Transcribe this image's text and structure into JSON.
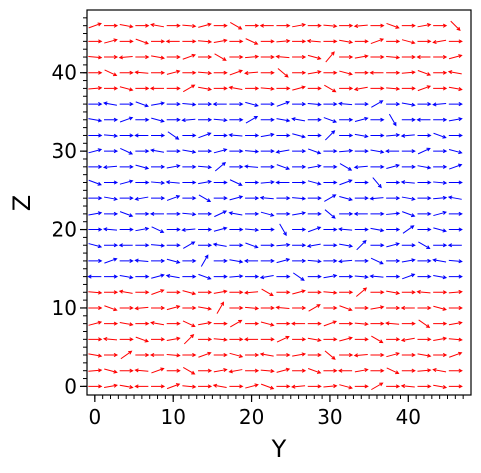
{
  "chart_data": {
    "type": "quiver",
    "xlabel": "Y",
    "ylabel": "Z",
    "xlim": [
      -1,
      48
    ],
    "ylim": [
      -1.1,
      48
    ],
    "xticks": [
      0,
      10,
      20,
      30,
      40
    ],
    "yticks": [
      0,
      10,
      20,
      30,
      40
    ],
    "xminorticks": [
      0,
      1,
      2,
      3,
      4,
      5,
      6,
      7,
      8,
      9,
      10,
      11,
      12,
      13,
      14,
      15,
      16,
      17,
      18,
      19,
      20,
      21,
      22,
      23,
      24,
      25,
      26,
      27,
      28,
      29,
      30,
      31,
      32,
      33,
      34,
      35,
      36,
      37,
      38,
      39,
      40,
      41,
      42,
      43,
      44,
      45,
      46,
      47
    ],
    "yminorticks": [
      0,
      1,
      2,
      3,
      4,
      5,
      6,
      7,
      8,
      9,
      10,
      11,
      12,
      13,
      14,
      15,
      16,
      17,
      18,
      19,
      20,
      21,
      22,
      23,
      24,
      25,
      26,
      27,
      28,
      29,
      30,
      31,
      32,
      33,
      34,
      35,
      36,
      37,
      38,
      39,
      40,
      41,
      42,
      43,
      44,
      45,
      46,
      47
    ],
    "y": [
      0,
      2,
      4,
      6,
      8,
      10,
      12,
      14,
      16,
      18,
      20,
      22,
      24,
      26,
      28,
      30,
      32,
      34,
      36,
      38,
      40,
      42,
      44,
      46
    ],
    "z": [
      0,
      2,
      4,
      6,
      8,
      10,
      12,
      14,
      16,
      18,
      20,
      22,
      24,
      26,
      28,
      30,
      32,
      34,
      36,
      38,
      40,
      42,
      44,
      46
    ],
    "row_colors": [
      "#ff0000",
      "#ff0000",
      "#ff0000",
      "#ff0000",
      "#ff0000",
      "#ff0000",
      "#ff0000",
      "#0000ff",
      "#0000ff",
      "#0000ff",
      "#0000ff",
      "#0000ff",
      "#0000ff",
      "#0000ff",
      "#0000ff",
      "#0000ff",
      "#0000ff",
      "#0000ff",
      "#0000ff",
      "#ff0000",
      "#ff0000",
      "#ff0000",
      "#ff0000",
      "#ff0000"
    ],
    "angles": [
      [
        0,
        10,
        -10,
        180,
        0,
        20,
        -5,
        0,
        170,
        0,
        15,
        -20,
        0,
        185,
        0,
        5,
        -15,
        0,
        30,
        0,
        175,
        0,
        -10,
        0
      ],
      [
        5,
        -15,
        0,
        175,
        20,
        0,
        -30,
        0,
        10,
        190,
        0,
        -5,
        15,
        0,
        -20,
        0,
        180,
        10,
        0,
        -25,
        0,
        5,
        170,
        0
      ],
      [
        -10,
        0,
        35,
        0,
        180,
        -5,
        0,
        20,
        0,
        -15,
        0,
        170,
        0,
        10,
        0,
        -40,
        0,
        185,
        0,
        15,
        0,
        -10,
        0,
        20
      ],
      [
        0,
        175,
        0,
        -20,
        0,
        10,
        45,
        0,
        -5,
        0,
        180,
        0,
        25,
        0,
        -10,
        0,
        15,
        0,
        -30,
        0,
        190,
        0,
        10,
        -5
      ],
      [
        15,
        0,
        -10,
        0,
        170,
        0,
        -25,
        10,
        0,
        30,
        0,
        -15,
        0,
        180,
        0,
        20,
        0,
        -5,
        0,
        175,
        0,
        -35,
        0,
        10
      ],
      [
        0,
        -20,
        0,
        185,
        0,
        15,
        0,
        -10,
        60,
        0,
        -5,
        0,
        175,
        0,
        30,
        0,
        -20,
        0,
        10,
        0,
        180,
        0,
        -15,
        0
      ],
      [
        -5,
        0,
        170,
        0,
        20,
        0,
        -15,
        0,
        10,
        0,
        185,
        -30,
        0,
        15,
        0,
        -5,
        0,
        40,
        0,
        -10,
        0,
        175,
        0,
        5
      ],
      [
        180,
        0,
        -10,
        0,
        15,
        170,
        0,
        -20,
        0,
        5,
        0,
        190,
        0,
        -35,
        0,
        10,
        0,
        -5,
        175,
        0,
        20,
        0,
        -10,
        0
      ],
      [
        0,
        20,
        0,
        175,
        0,
        -15,
        0,
        60,
        0,
        -10,
        180,
        0,
        15,
        0,
        -5,
        0,
        185,
        0,
        -25,
        0,
        10,
        0,
        170,
        -5
      ],
      [
        -15,
        0,
        180,
        0,
        -5,
        0,
        30,
        0,
        170,
        0,
        -20,
        0,
        5,
        0,
        190,
        0,
        -10,
        45,
        0,
        15,
        0,
        -30,
        0,
        180
      ],
      [
        0,
        175,
        0,
        10,
        -25,
        0,
        185,
        0,
        15,
        0,
        -5,
        0,
        -60,
        0,
        20,
        0,
        175,
        0,
        -10,
        0,
        35,
        0,
        -15,
        0
      ],
      [
        10,
        0,
        -20,
        0,
        180,
        0,
        -5,
        0,
        25,
        170,
        0,
        -15,
        0,
        10,
        0,
        -40,
        0,
        180,
        0,
        5,
        -20,
        0,
        15,
        0
      ],
      [
        0,
        -10,
        0,
        190,
        0,
        20,
        0,
        -30,
        0,
        15,
        0,
        175,
        0,
        -5,
        0,
        30,
        -15,
        0,
        185,
        0,
        -10,
        0,
        5,
        170
      ],
      [
        -20,
        0,
        15,
        0,
        -5,
        175,
        0,
        10,
        0,
        -25,
        0,
        5,
        180,
        0,
        -15,
        0,
        20,
        0,
        -50,
        0,
        175,
        0,
        -5,
        0
      ],
      [
        0,
        185,
        0,
        -15,
        0,
        10,
        0,
        -5,
        40,
        0,
        175,
        0,
        -20,
        0,
        10,
        0,
        -30,
        185,
        0,
        15,
        0,
        -10,
        0,
        20
      ],
      [
        15,
        0,
        -25,
        0,
        170,
        0,
        -10,
        0,
        15,
        0,
        -5,
        0,
        190,
        0,
        -20,
        0,
        5,
        0,
        -10,
        180,
        0,
        25,
        0,
        -15
      ],
      [
        0,
        -5,
        0,
        180,
        0,
        -35,
        0,
        20,
        0,
        175,
        0,
        10,
        0,
        -15,
        0,
        45,
        0,
        -10,
        0,
        5,
        185,
        0,
        -20,
        0
      ],
      [
        -10,
        0,
        20,
        0,
        -15,
        0,
        185,
        0,
        -5,
        0,
        30,
        0,
        -10,
        170,
        0,
        -20,
        0,
        15,
        0,
        -60,
        0,
        180,
        0,
        10
      ],
      [
        0,
        170,
        0,
        -20,
        10,
        0,
        -5,
        0,
        180,
        0,
        -15,
        0,
        20,
        0,
        -5,
        0,
        175,
        0,
        30,
        0,
        -10,
        0,
        185,
        0
      ],
      [
        5,
        0,
        -15,
        0,
        180,
        0,
        30,
        -10,
        0,
        170,
        0,
        -5,
        0,
        15,
        0,
        -30,
        0,
        190,
        0,
        -5,
        0,
        20,
        0,
        -10
      ],
      [
        0,
        -25,
        0,
        175,
        0,
        15,
        0,
        -5,
        0,
        20,
        185,
        0,
        -40,
        0,
        10,
        0,
        -15,
        0,
        180,
        0,
        5,
        -20,
        0,
        170
      ],
      [
        -5,
        0,
        185,
        0,
        -10,
        0,
        20,
        0,
        -30,
        0,
        5,
        0,
        175,
        0,
        -15,
        50,
        0,
        10,
        0,
        -5,
        0,
        180,
        0,
        15
      ],
      [
        0,
        15,
        0,
        -20,
        0,
        180,
        0,
        -5,
        10,
        0,
        -25,
        0,
        5,
        0,
        175,
        0,
        -10,
        0,
        20,
        0,
        -15,
        0,
        190,
        0
      ],
      [
        20,
        0,
        -10,
        0,
        170,
        0,
        -5,
        15,
        0,
        -30,
        0,
        180,
        0,
        10,
        0,
        -5,
        0,
        185,
        0,
        -20,
        0,
        10,
        0,
        -45
      ]
    ]
  }
}
